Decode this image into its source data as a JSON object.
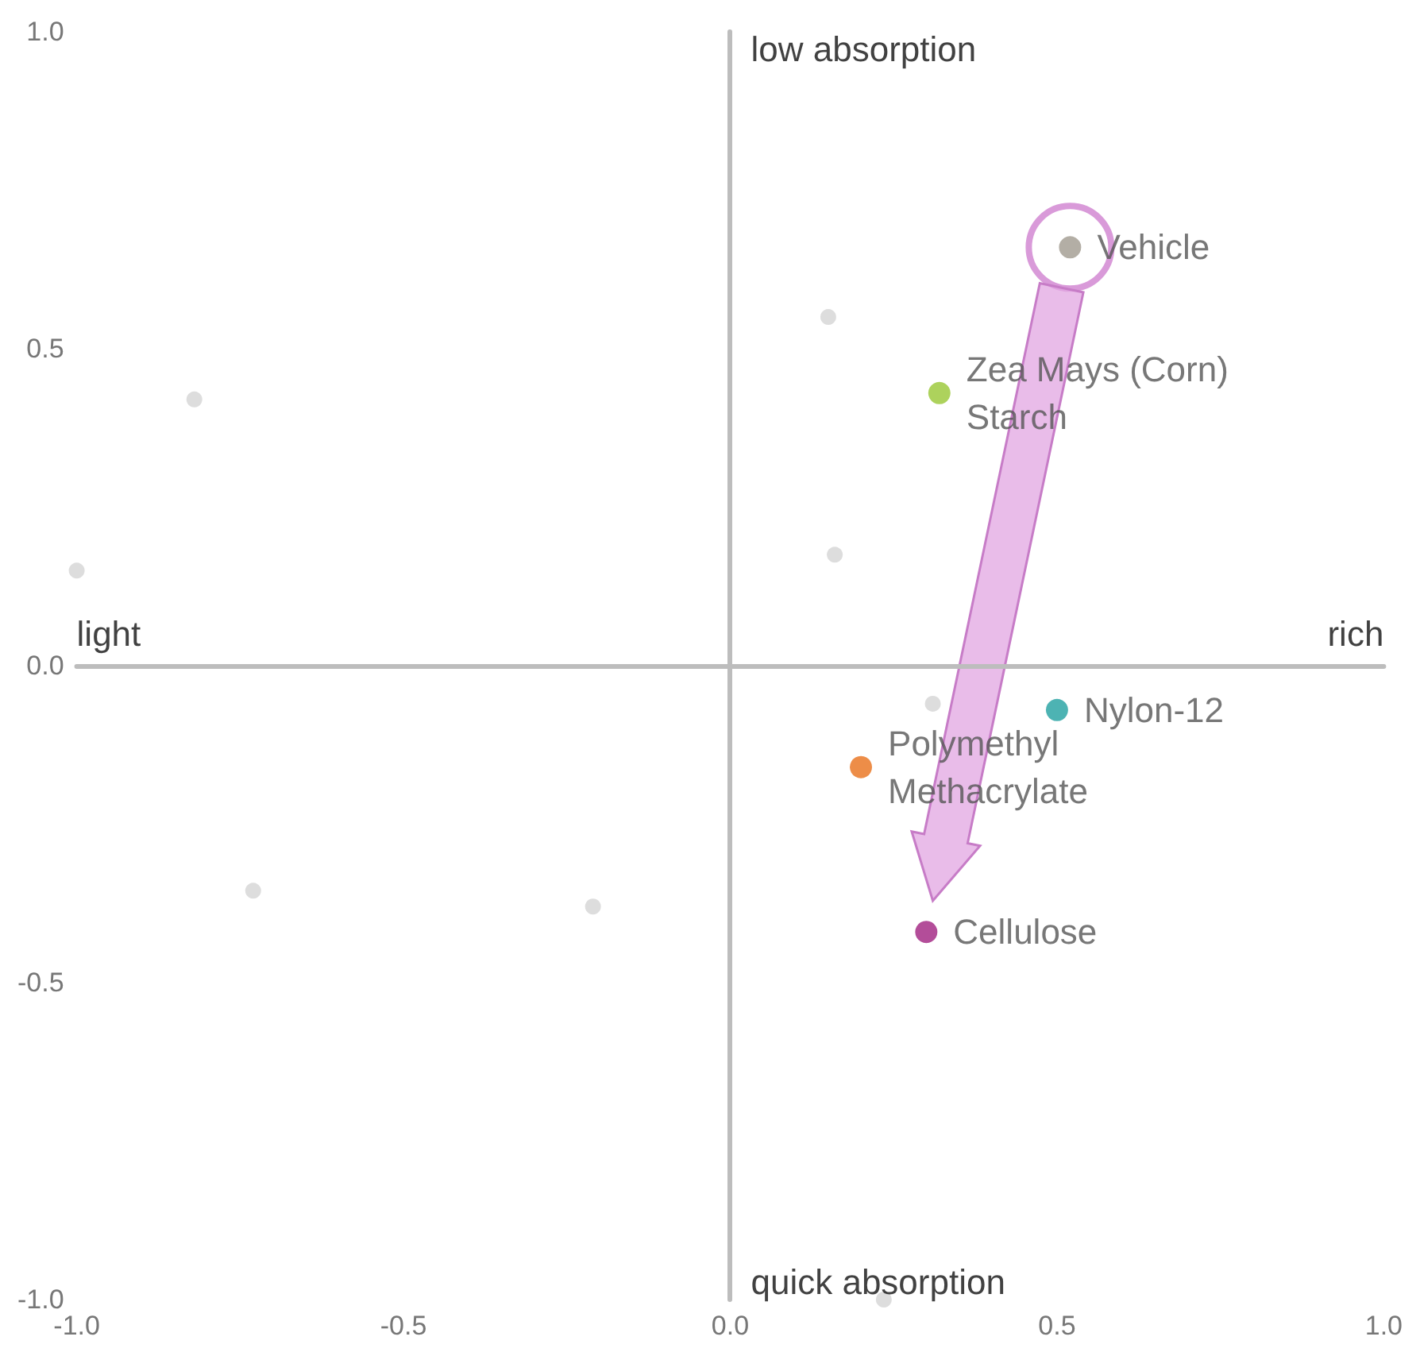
{
  "chart_data": {
    "type": "scatter",
    "marker": "circle",
    "legend": false,
    "xlim": [
      -1,
      1
    ],
    "ylim": [
      -1,
      1
    ],
    "xticks": [
      {
        "value": -1,
        "label": "-1.0"
      },
      {
        "value": -0.5,
        "label": "-0.5"
      },
      {
        "value": 0,
        "label": "0.0"
      },
      {
        "value": 0.5,
        "label": "0.5"
      },
      {
        "value": 1,
        "label": "1.0"
      }
    ],
    "yticks": [
      {
        "value": -1,
        "label": "-1.0"
      },
      {
        "value": -0.5,
        "label": "-0.5"
      },
      {
        "value": 0,
        "label": "0.0"
      },
      {
        "value": 0.5,
        "label": "0.5"
      },
      {
        "value": 1,
        "label": "1.0"
      }
    ],
    "annotations": [
      "light",
      "rich",
      "low absorption",
      "quick absorption"
    ],
    "series": [
      {
        "name": "Vehicle",
        "color": "#a09a8e",
        "x": [
          0.52
        ],
        "values": [
          0.66
        ]
      },
      {
        "name": "Zea Mays (Corn) Starch",
        "color": "#99c733",
        "x": [
          0.32
        ],
        "values": [
          0.43
        ]
      },
      {
        "name": "Nylon-12",
        "color": "#20a0a0",
        "x": [
          0.5
        ],
        "values": [
          -0.07
        ]
      },
      {
        "name": "Polymethyl Methacrylate",
        "color": "#e8701a",
        "x": [
          0.2
        ],
        "values": [
          -0.16
        ]
      },
      {
        "name": "Cellulose",
        "color": "#a0207f",
        "x": [
          0.3
        ],
        "values": [
          -0.42
        ]
      },
      {
        "color": "#d4d4d4",
        "x": [
          -1.0,
          -0.82,
          0.15,
          0.16,
          0.31,
          -0.73,
          -0.21,
          0.235
        ],
        "values": [
          0.15,
          0.42,
          0.55,
          0.175,
          -0.06,
          -0.355,
          -0.38,
          -1.0
        ]
      }
    ]
  }
}
